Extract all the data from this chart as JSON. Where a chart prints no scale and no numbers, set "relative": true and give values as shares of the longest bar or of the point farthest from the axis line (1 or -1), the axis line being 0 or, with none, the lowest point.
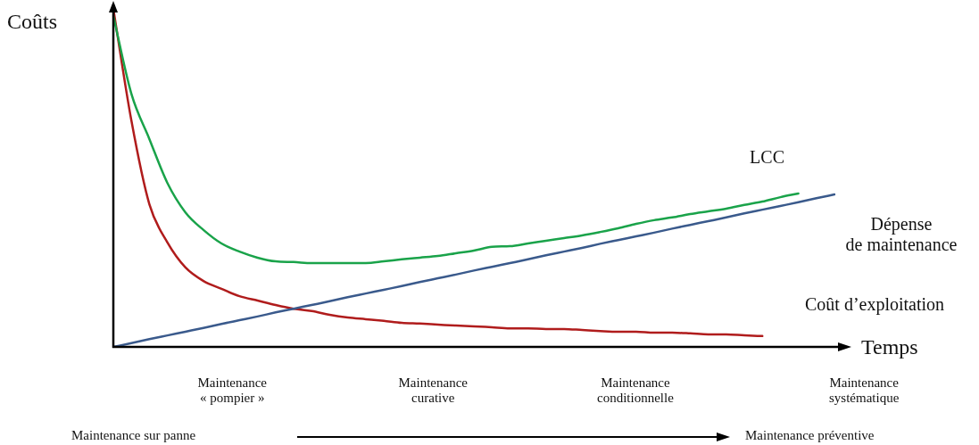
{
  "chart_data": {
    "type": "line",
    "relative": true,
    "xlabel": "Temps",
    "ylabel": "Coûts",
    "marker": "none",
    "legend": false,
    "grid": false,
    "categories": [
      null,
      null,
      null,
      null,
      null,
      null,
      null,
      null,
      null,
      null,
      null,
      null,
      null,
      null,
      null,
      null,
      null,
      null,
      null,
      null,
      null,
      null,
      null,
      null,
      null,
      null,
      null,
      null,
      null,
      null,
      null,
      null,
      null,
      null,
      null,
      null,
      null,
      null,
      null,
      null,
      null
    ],
    "series": [
      {
        "name": "LCC",
        "color": "#1aa34a",
        "values": [
          0.979,
          0.749,
          0.615,
          0.485,
          0.398,
          0.346,
          0.306,
          0.282,
          0.264,
          0.253,
          0.251,
          0.248,
          0.248,
          0.248,
          0.248,
          0.253,
          0.259,
          0.264,
          0.269,
          0.277,
          0.285,
          0.296,
          0.298,
          0.306,
          0.314,
          0.322,
          0.33,
          0.34,
          0.351,
          0.364,
          0.375,
          0.383,
          0.393,
          0.401,
          0.409,
          0.42,
          0.43,
          0.443,
          0.454,
          null,
          null
        ]
      },
      {
        "name": "Dépense de maintenance",
        "color": "#3a5a8c",
        "values": [
          0,
          0.011,
          0.023,
          0.034,
          0.045,
          0.056,
          0.068,
          0.079,
          0.09,
          0.102,
          0.113,
          0.124,
          0.135,
          0.147,
          0.158,
          0.169,
          0.18,
          0.192,
          0.203,
          0.214,
          0.226,
          0.237,
          0.248,
          0.259,
          0.271,
          0.282,
          0.293,
          0.305,
          0.316,
          0.327,
          0.338,
          0.35,
          0.361,
          0.372,
          0.383,
          0.395,
          0.406,
          0.417,
          0.428,
          0.44,
          0.451
        ]
      },
      {
        "name": "Coût d’exploitation",
        "color": "#b01c1c",
        "values": [
          1,
          0.67,
          0.422,
          0.309,
          0.235,
          0.195,
          0.172,
          0.15,
          0.137,
          0.124,
          0.113,
          0.106,
          0.095,
          0.087,
          0.082,
          0.077,
          0.071,
          0.069,
          0.066,
          0.063,
          0.061,
          0.058,
          0.055,
          0.055,
          0.053,
          0.053,
          0.05,
          0.047,
          0.045,
          0.045,
          0.042,
          0.042,
          0.04,
          0.037,
          0.037,
          0.034,
          0.032,
          null,
          null,
          null,
          null
        ]
      }
    ],
    "annotations": [
      "Maintenance « pompier »",
      "Maintenance curative",
      "Maintenance conditionnelle",
      "Maintenance systématique",
      "Maintenance sur panne",
      "Maintenance préventive"
    ]
  }
}
